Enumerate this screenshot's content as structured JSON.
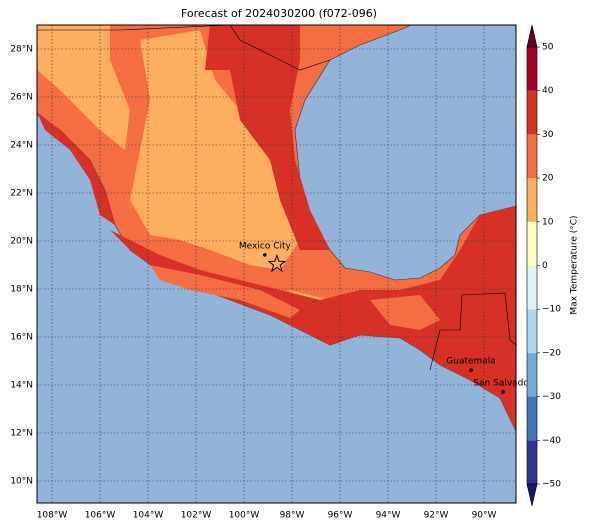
{
  "chart_data": {
    "type": "map",
    "title": "Forecast of 2024030200 (f072-096)",
    "xlim": [
      -108.625,
      -88.667
    ],
    "ylim": [
      9.083,
      29.0
    ],
    "xticks": [
      {
        "value": -108,
        "label": "108°W"
      },
      {
        "value": -106,
        "label": "106°W"
      },
      {
        "value": -104,
        "label": "104°W"
      },
      {
        "value": -102,
        "label": "102°W"
      },
      {
        "value": -100,
        "label": "100°W"
      },
      {
        "value": -98,
        "label": "98°W"
      },
      {
        "value": -96,
        "label": "96°W"
      },
      {
        "value": -94,
        "label": "94°W"
      },
      {
        "value": -92,
        "label": "92°W"
      },
      {
        "value": -90,
        "label": "90°W"
      }
    ],
    "yticks": [
      {
        "value": 10,
        "label": "10°N"
      },
      {
        "value": 12,
        "label": "12°N"
      },
      {
        "value": 14,
        "label": "14°N"
      },
      {
        "value": 16,
        "label": "16°N"
      },
      {
        "value": 18,
        "label": "18°N"
      },
      {
        "value": 20,
        "label": "20°N"
      },
      {
        "value": 22,
        "label": "22°N"
      },
      {
        "value": 24,
        "label": "24°N"
      },
      {
        "value": 26,
        "label": "26°N"
      },
      {
        "value": 28,
        "label": "28°N"
      }
    ],
    "grid": true,
    "ocean_color": "#92b4d8",
    "colorbar": {
      "label": "Max Temperature (°C)",
      "ticks": [
        {
          "value": -50,
          "label": "−50"
        },
        {
          "value": -40,
          "label": "−40"
        },
        {
          "value": -30,
          "label": "−30"
        },
        {
          "value": -20,
          "label": "−20"
        },
        {
          "value": -10,
          "label": "−10"
        },
        0,
        10,
        20,
        30,
        40,
        50
      ],
      "colors": [
        "#313695",
        "#4575b4",
        "#74add1",
        "#abd9e9",
        "#e0f3f8",
        "#ffffbf",
        "#fdae61",
        "#f46d43",
        "#d73027",
        "#a50026"
      ]
    },
    "places": [
      {
        "name": "Mexico City",
        "lon": -99.13,
        "lat": 19.42
      },
      {
        "name": "Guatemala",
        "lon": -90.54,
        "lat": 14.62
      },
      {
        "name": "San Salvador",
        "lon": -89.21,
        "lat": 13.71
      }
    ],
    "marker": {
      "lon": -98.63,
      "lat": 19.04
    }
  }
}
